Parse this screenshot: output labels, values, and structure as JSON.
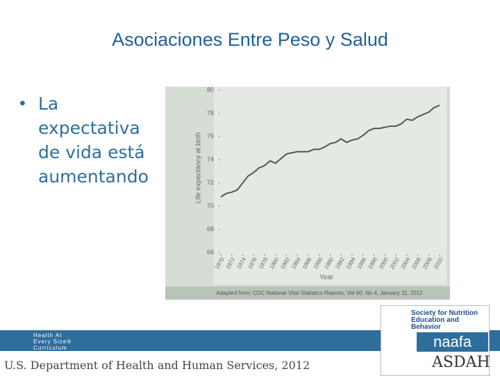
{
  "slide": {
    "title": "Asociaciones Entre Peso y Salud",
    "bullet": "La expectativa de vida está aumentando",
    "footer": "U.S. Department of Health and Human Services, 2012",
    "logos": {
      "haes": "Health At Every Size® Curriculum",
      "sneb": "Society for Nutrition Education and Behavior",
      "naafa": "naafa",
      "asdah": "ASDAH"
    }
  },
  "chart_data": {
    "type": "line",
    "xlabel": "Year",
    "ylabel": "Life expectancy at birth",
    "source": "Adapted from: CDC National Vital Statistics Reports, Vol 60, No 4, January 11, 2012",
    "x": [
      1970,
      1971,
      1972,
      1973,
      1974,
      1975,
      1976,
      1977,
      1978,
      1979,
      1980,
      1981,
      1982,
      1983,
      1984,
      1985,
      1986,
      1987,
      1988,
      1989,
      1990,
      1991,
      1992,
      1993,
      1994,
      1995,
      1996,
      1997,
      1998,
      1999,
      2000,
      2001,
      2002,
      2003,
      2004,
      2005,
      2006,
      2007,
      2008,
      2009,
      2010
    ],
    "series": [
      {
        "name": "Life expectancy",
        "color": "#555555",
        "values": [
          70.8,
          71.1,
          71.2,
          71.4,
          72.0,
          72.6,
          72.9,
          73.3,
          73.5,
          73.9,
          73.7,
          74.1,
          74.5,
          74.6,
          74.7,
          74.7,
          74.7,
          74.9,
          74.9,
          75.1,
          75.4,
          75.5,
          75.8,
          75.5,
          75.7,
          75.8,
          76.1,
          76.5,
          76.7,
          76.7,
          76.8,
          76.9,
          76.9,
          77.1,
          77.5,
          77.4,
          77.7,
          77.9,
          78.1,
          78.5,
          78.7
        ]
      }
    ],
    "xlim": [
      1970,
      2010
    ],
    "xticks": [
      1970,
      1972,
      1974,
      1976,
      1978,
      1980,
      1982,
      1984,
      1986,
      1988,
      1990,
      1992,
      1994,
      1996,
      1998,
      2000,
      2002,
      2004,
      2006,
      2008,
      2010
    ],
    "ylim": [
      66,
      80
    ],
    "yticks": [
      66,
      68,
      70,
      72,
      74,
      76,
      78,
      80
    ],
    "grid": false
  }
}
